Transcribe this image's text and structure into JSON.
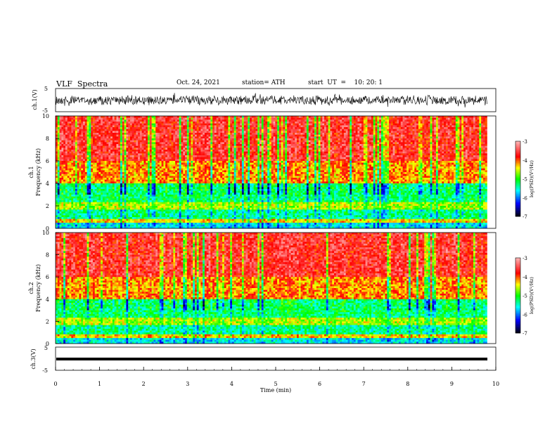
{
  "header": {
    "title": "VLF  Spectra",
    "date": "Oct. 24, 2021",
    "station": "station= ATH",
    "start": "start  UT  =    10: 20: 1"
  },
  "chart_data": [
    {
      "type": "line",
      "name": "ch1-waveform",
      "ylabel": "ch.1(V)",
      "yticks": [
        "5",
        "-5"
      ],
      "ylim": [
        -5,
        5
      ],
      "amplitude_note": "noisy waveform centered at 0, roughly ±2 V"
    },
    {
      "type": "heatmap",
      "name": "ch1-spectrogram",
      "ylabel": "ch.1\nFrequency (kHz)",
      "ylabel_lines": [
        "ch.1",
        "Frequency  (kHz)"
      ],
      "yticks": [
        "0",
        "2",
        "4",
        "6",
        "8",
        "10"
      ],
      "ylim": [
        0,
        10
      ],
      "xlim": [
        0,
        10
      ],
      "colorbar": {
        "label": "log(PSD)(V²/Hz)",
        "ticks": [
          "-3",
          "-4",
          "-5",
          "-6",
          "-7"
        ],
        "range": [
          -7,
          -3
        ]
      }
    },
    {
      "type": "heatmap",
      "name": "ch2-spectrogram",
      "ylabel_lines": [
        "ch.2",
        "Frequency  (kHz)"
      ],
      "yticks": [
        "0",
        "2",
        "4",
        "6",
        "8",
        "10"
      ],
      "ylim": [
        0,
        10
      ],
      "xlim": [
        0,
        10
      ],
      "colorbar": {
        "label": "log(PSD)(V²/Hz)",
        "ticks": [
          "-3",
          "-4",
          "-5",
          "-6",
          "-7"
        ],
        "range": [
          -7,
          -3
        ]
      }
    },
    {
      "type": "line",
      "name": "ch3-waveform",
      "ylabel": "ch.3(V)",
      "yticks": [
        "5",
        "-5"
      ],
      "ylim": [
        -5,
        5
      ],
      "xlabel": "Time  (min)",
      "xticks": [
        "0",
        "1",
        "2",
        "3",
        "4",
        "5",
        "6",
        "7",
        "8",
        "9",
        "10"
      ],
      "xlim": [
        0,
        10
      ],
      "duration_note": "data end near 9.8 min"
    }
  ],
  "colors": {
    "high": "#ff0000",
    "mid_high": "#ffff00",
    "mid": "#00ff00",
    "mid_low": "#00ffff",
    "low": "#0000ff",
    "lowest": "#000000"
  }
}
